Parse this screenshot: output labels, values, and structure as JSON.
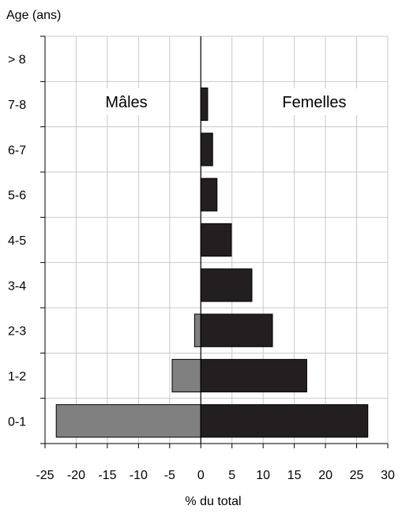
{
  "chart_data": {
    "type": "bar",
    "orientation": "horizontal",
    "layout": "population-pyramid",
    "xlabel": "% du total",
    "ylabel": "Age (ans)",
    "xlim": [
      -25,
      30
    ],
    "xticks": [
      -25,
      -20,
      -15,
      -10,
      -5,
      0,
      5,
      10,
      15,
      20,
      25,
      30
    ],
    "grid": true,
    "categories": [
      "0-1",
      "1-2",
      "2-3",
      "3-4",
      "4-5",
      "5-6",
      "6-7",
      "7-8",
      "> 8"
    ],
    "series": [
      {
        "name": "Mâles",
        "color": "#808080",
        "values": [
          -23.2,
          -4.6,
          -1.0,
          0,
          0,
          0,
          0,
          0,
          0
        ]
      },
      {
        "name": "Femelles",
        "color": "#231f20",
        "values": [
          26.8,
          17.0,
          11.5,
          8.2,
          4.9,
          2.6,
          1.9,
          1.1,
          0
        ]
      }
    ]
  }
}
